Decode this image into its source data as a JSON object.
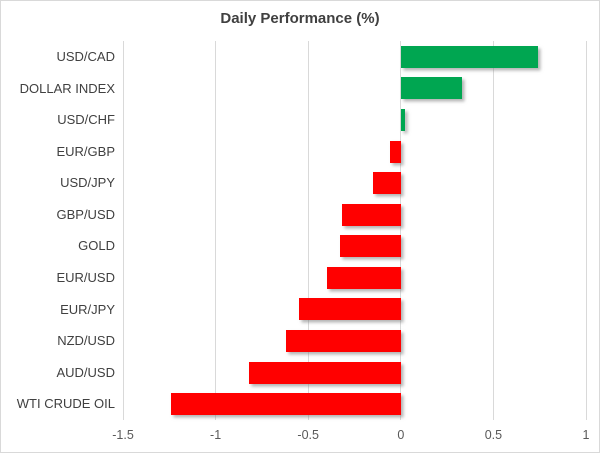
{
  "chart": {
    "title": "Daily Performance (%)",
    "colors": {
      "positive": "#00A651",
      "negative": "#FF0000",
      "gridline": "#D9D9D9",
      "chart_border": "#D9D9D9",
      "title_text": "#404040",
      "category_text": "#404040",
      "tick_text": "#595959",
      "background": "#FFFFFF"
    }
  },
  "chart_data": {
    "type": "bar",
    "orientation": "horizontal",
    "title": "Daily Performance (%)",
    "categories": [
      "USD/CAD",
      "DOLLAR INDEX",
      "USD/CHF",
      "EUR/GBP",
      "USD/JPY",
      "GBP/USD",
      "GOLD",
      "EUR/USD",
      "EUR/JPY",
      "NZD/USD",
      "AUD/USD",
      "WTI CRUDE OIL"
    ],
    "values": [
      0.74,
      0.33,
      0.02,
      -0.06,
      -0.15,
      -0.32,
      -0.33,
      -0.4,
      -0.55,
      -0.62,
      -0.82,
      -1.24
    ],
    "xlim": [
      -1.5,
      1
    ],
    "xticks": [
      -1.5,
      -1,
      -0.5,
      0,
      0.5,
      1
    ],
    "xtick_labels": [
      "-1.5",
      "-1",
      "-0.5",
      "0",
      "0.5",
      "1"
    ],
    "xlabel": "",
    "ylabel": "",
    "grid": true,
    "legend_position": "none"
  }
}
